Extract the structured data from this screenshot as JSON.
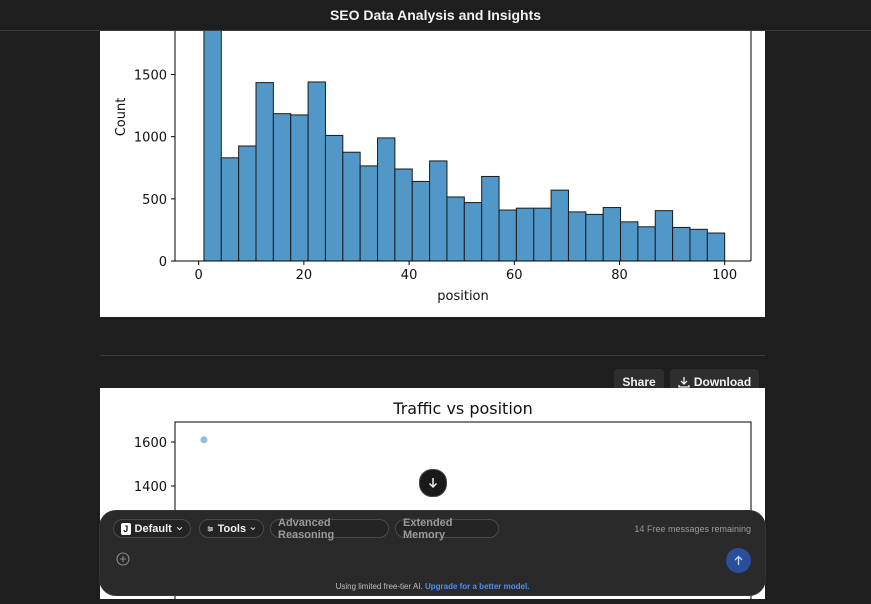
{
  "header": {
    "title": "SEO Data Analysis and Insights"
  },
  "actions": {
    "share_label": "Share",
    "download_label": "Download"
  },
  "composer": {
    "mode_label": "Default",
    "mode_badge": "J",
    "tools_label": "Tools",
    "reasoning_label": "Advanced Reasoning",
    "memory_label": "Extended Memory",
    "remaining_count": "14",
    "remaining_text": "Free messages remaining",
    "footer_prefix": "Using limited free-tier AI.",
    "footer_link": "Upgrade for a better model."
  },
  "colors": {
    "bar_fill": "#5198c8",
    "scatter_point": "#8fbde3",
    "send_bg": "#2a4d9c"
  },
  "chart_data": [
    {
      "type": "bar",
      "title": "",
      "xlabel": "position",
      "ylabel": "Count",
      "bin_start": 1,
      "bin_width": 3.3,
      "values": [
        1900,
        830,
        925,
        1435,
        1185,
        1175,
        1440,
        1010,
        875,
        765,
        990,
        740,
        640,
        805,
        515,
        470,
        680,
        410,
        425,
        425,
        570,
        395,
        375,
        430,
        315,
        275,
        405,
        270,
        255,
        225
      ],
      "xticks": [
        0,
        20,
        40,
        60,
        80,
        100
      ],
      "yticks": [
        0,
        500,
        1000,
        1500
      ],
      "xlim": [
        -4.5,
        105
      ],
      "ylim": [
        0,
        1850
      ]
    },
    {
      "type": "scatter",
      "title": "Traffic vs position",
      "points": [
        {
          "x": 1,
          "y": 1610
        }
      ],
      "xlim": [
        -4.5,
        105
      ],
      "yticks": [
        1400,
        1600
      ],
      "ylim": [
        0,
        1690
      ]
    }
  ]
}
